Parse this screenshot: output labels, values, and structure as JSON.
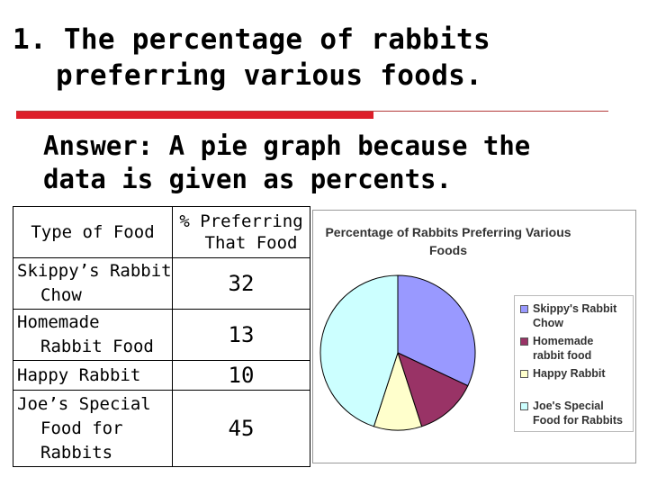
{
  "slide": {
    "title_line1": "1. The percentage of rabbits",
    "title_line2": "preferring various foods.",
    "answer_line1": "Answer: A pie graph because the",
    "answer_line2": "data is given as percents."
  },
  "table": {
    "headers": {
      "type": "Type of Food",
      "pct_line1": "% Preferring",
      "pct_line2": "That Food"
    },
    "rows": [
      {
        "lines": [
          "Skippy’s Rabbit",
          "Chow"
        ],
        "value": "32"
      },
      {
        "lines": [
          "Homemade",
          "Rabbit Food"
        ],
        "value": "13"
      },
      {
        "lines": [
          "Happy Rabbit"
        ],
        "value": "10"
      },
      {
        "lines": [
          "Joe’s Special",
          "Food for",
          "Rabbits"
        ],
        "value": "45"
      }
    ]
  },
  "chart_data": {
    "type": "pie",
    "title_line1": "Percentage of Rabbits Preferring Various",
    "title_line2": "Foods",
    "categories": [
      "Skippy's Rabbit Chow",
      "Homemade rabbit food",
      "Happy Rabbit",
      "Joe's Special Food for Rabbits"
    ],
    "legend_lines": [
      [
        "Skippy's Rabbit",
        "Chow"
      ],
      [
        "Homemade",
        "rabbit food"
      ],
      [
        "Happy Rabbit"
      ],
      [
        "Joe's Special",
        "Food for Rabbits"
      ]
    ],
    "values": [
      32,
      13,
      10,
      45
    ],
    "colors": [
      "#9999ff",
      "#993366",
      "#ffffcc",
      "#ccffff"
    ],
    "legend_position": "right"
  }
}
